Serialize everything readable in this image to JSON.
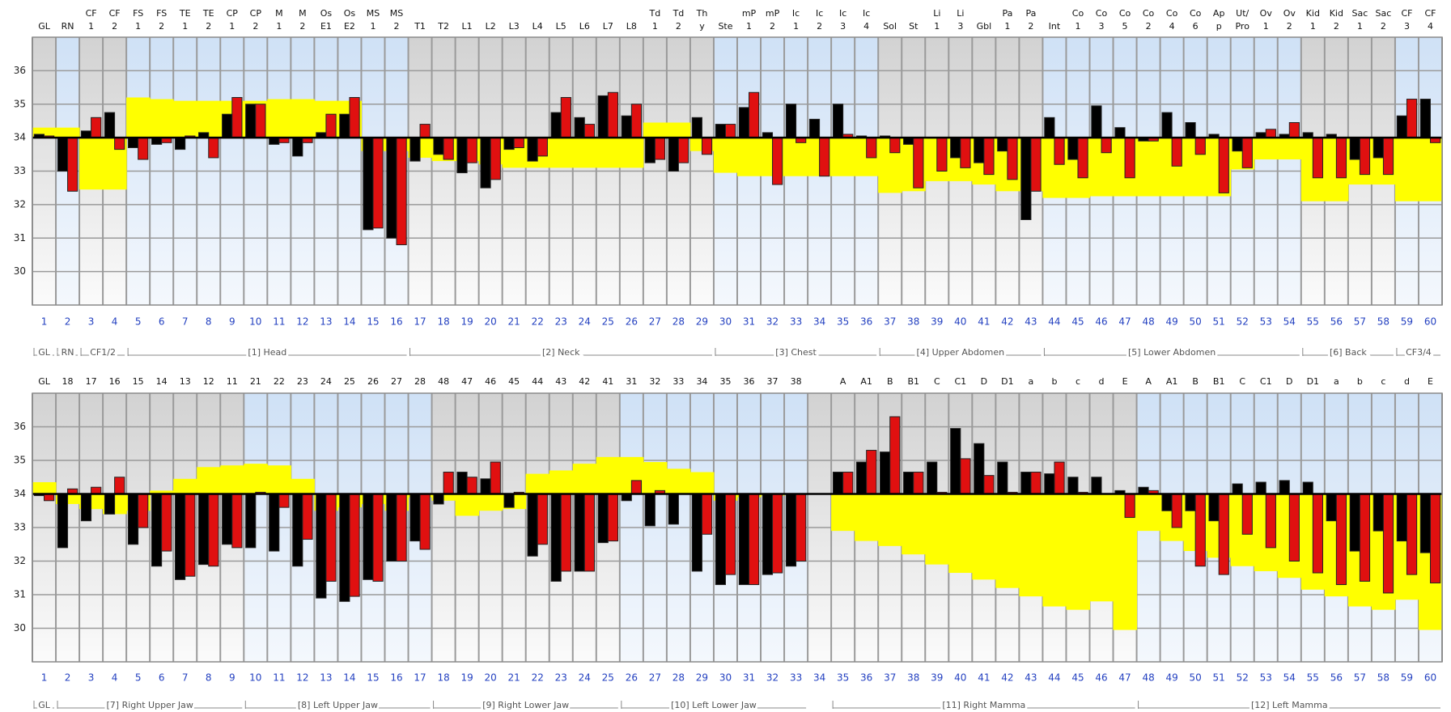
{
  "chart_data": [
    {
      "type": "bar",
      "labels": [
        [
          "GL"
        ],
        [
          "RN"
        ],
        [
          "CF",
          "1"
        ],
        [
          "CF",
          "2"
        ],
        [
          "FS",
          "1"
        ],
        [
          "FS",
          "2"
        ],
        [
          "TE",
          "1"
        ],
        [
          "TE",
          "2"
        ],
        [
          "CP",
          "1"
        ],
        [
          "CP",
          "2"
        ],
        [
          "M",
          "1"
        ],
        [
          "M",
          "2"
        ],
        [
          "Os",
          "E1"
        ],
        [
          "Os",
          "E2"
        ],
        [
          "MS",
          "1"
        ],
        [
          "MS",
          "2"
        ],
        [
          "T1"
        ],
        [
          "T2"
        ],
        [
          "L1"
        ],
        [
          "L2"
        ],
        [
          "L3"
        ],
        [
          "L4"
        ],
        [
          "L5"
        ],
        [
          "L6"
        ],
        [
          "L7"
        ],
        [
          "L8"
        ],
        [
          "Td",
          "1"
        ],
        [
          "Td",
          "2"
        ],
        [
          "Th",
          "y"
        ],
        [
          "Ste"
        ],
        [
          "mP",
          "1"
        ],
        [
          "mP",
          "2"
        ],
        [
          "Ic",
          "1"
        ],
        [
          "Ic",
          "2"
        ],
        [
          "Ic",
          "3"
        ],
        [
          "Ic",
          "4"
        ],
        [
          "Sol"
        ],
        [
          "St"
        ],
        [
          "Li",
          "1"
        ],
        [
          "Li",
          "3"
        ],
        [
          "Gbl"
        ],
        [
          "Pa",
          "1"
        ],
        [
          "Pa",
          "2"
        ],
        [
          "Int"
        ],
        [
          "Co",
          "1"
        ],
        [
          "Co",
          "3"
        ],
        [
          "Co",
          "5"
        ],
        [
          "Co",
          "2"
        ],
        [
          "Co",
          "4"
        ],
        [
          "Co",
          "6"
        ],
        [
          "Ap",
          "p"
        ],
        [
          "Ut/",
          "Pro"
        ],
        [
          "Ov",
          "1"
        ],
        [
          "Ov",
          "2"
        ],
        [
          "Kid",
          "1"
        ],
        [
          "Kid",
          "2"
        ],
        [
          "Sac",
          "1"
        ],
        [
          "Sac",
          "2"
        ],
        [
          "CF",
          "3"
        ],
        [
          "CF",
          "4"
        ]
      ],
      "categories": [
        1,
        2,
        3,
        4,
        5,
        6,
        7,
        8,
        9,
        10,
        11,
        12,
        13,
        14,
        15,
        16,
        17,
        18,
        19,
        20,
        21,
        22,
        23,
        24,
        25,
        26,
        27,
        28,
        29,
        30,
        31,
        32,
        33,
        34,
        35,
        36,
        37,
        38,
        39,
        40,
        41,
        42,
        43,
        44,
        45,
        46,
        47,
        48,
        49,
        50,
        51,
        52,
        53,
        54,
        55,
        56,
        57,
        58,
        59,
        60
      ],
      "group_labels": [
        "GL",
        "RN",
        "CF1/2",
        "[1] Head",
        "[2] Neck",
        "[3] Chest",
        "[4] Upper Abdomen",
        "[5] Lower Abdomen",
        "[6] Back",
        "CF3/4"
      ],
      "ylim": [
        29,
        37
      ],
      "yticks": [
        30,
        31,
        32,
        33,
        34,
        35,
        36
      ],
      "baseline": 34,
      "grid": true,
      "series": [
        {
          "color": "#000000",
          "values": [
            34.1,
            33.0,
            34.2,
            34.75,
            33.7,
            33.8,
            33.65,
            34.15,
            34.7,
            35.0,
            33.8,
            33.45,
            34.15,
            34.7,
            31.25,
            31.0,
            33.3,
            33.5,
            32.95,
            32.5,
            33.65,
            33.3,
            34.75,
            34.6,
            35.25,
            34.65,
            33.25,
            33.0,
            34.6,
            34.4,
            34.9,
            34.15,
            35.0,
            34.55,
            35.0,
            34.05,
            34.05,
            33.8,
            34.0,
            33.4,
            33.25,
            33.6,
            31.55,
            34.6,
            33.35,
            34.95,
            34.3,
            33.9,
            34.75,
            34.45,
            34.1,
            33.6,
            34.15,
            34.1,
            34.15,
            34.1,
            33.35,
            33.4,
            34.65,
            35.15
          ]
        },
        {
          "color": "#e01010",
          "values": [
            34.05,
            32.4,
            34.6,
            33.65,
            33.35,
            33.85,
            34.05,
            33.4,
            35.2,
            35.0,
            33.85,
            33.85,
            34.7,
            35.2,
            31.3,
            30.8,
            34.4,
            33.35,
            33.25,
            32.75,
            33.7,
            33.45,
            35.2,
            34.4,
            35.35,
            35.0,
            33.35,
            33.25,
            33.5,
            34.4,
            35.35,
            32.6,
            33.85,
            32.85,
            34.1,
            33.4,
            33.55,
            32.5,
            33.0,
            33.1,
            32.9,
            32.75,
            32.4,
            33.2,
            32.8,
            33.55,
            32.8,
            33.9,
            33.15,
            33.5,
            32.35,
            33.1,
            34.25,
            34.45,
            32.8,
            32.8,
            32.9,
            32.9,
            35.15,
            33.85
          ]
        }
      ],
      "band": {
        "color": "#ffff00",
        "values": [
          34.3,
          34.3,
          32.45,
          32.45,
          35.2,
          35.15,
          35.1,
          35.1,
          35.1,
          35.1,
          35.15,
          35.15,
          35.1,
          35.1,
          33.6,
          33.6,
          33.4,
          33.3,
          33.3,
          33.2,
          33.1,
          33.1,
          33.1,
          33.1,
          33.1,
          33.1,
          34.45,
          34.45,
          33.6,
          32.95,
          32.85,
          32.85,
          32.85,
          32.85,
          32.85,
          32.85,
          32.35,
          32.4,
          32.7,
          32.7,
          32.6,
          32.4,
          32.4,
          32.2,
          32.2,
          32.25,
          32.25,
          32.25,
          32.25,
          32.25,
          32.25,
          33.05,
          33.35,
          33.35,
          32.1,
          32.1,
          32.6,
          32.6,
          32.1,
          32.1
        ]
      }
    },
    {
      "type": "bar",
      "labels": [
        "GL",
        "18",
        "17",
        "16",
        "15",
        "14",
        "13",
        "12",
        "11",
        "21",
        "22",
        "23",
        "24",
        "25",
        "26",
        "27",
        "28",
        "48",
        "47",
        "46",
        "45",
        "44",
        "43",
        "42",
        "41",
        "31",
        "32",
        "33",
        "34",
        "35",
        "36",
        "37",
        "38",
        null,
        "A",
        "A1",
        "B",
        "B1",
        "C",
        "C1",
        "D",
        "D1",
        "a",
        "b",
        "c",
        "d",
        "E",
        "A",
        "A1",
        "B",
        "B1",
        "C",
        "C1",
        "D",
        "D1",
        "a",
        "b",
        "c",
        "d",
        "E"
      ],
      "categories": [
        1,
        2,
        3,
        4,
        5,
        6,
        7,
        8,
        9,
        10,
        11,
        12,
        13,
        14,
        15,
        16,
        17,
        18,
        19,
        20,
        21,
        22,
        23,
        24,
        25,
        26,
        27,
        28,
        29,
        30,
        31,
        32,
        33,
        34,
        35,
        36,
        37,
        38,
        39,
        40,
        41,
        42,
        43,
        44,
        45,
        46,
        47,
        48,
        49,
        50,
        51,
        52,
        53,
        54,
        55,
        56,
        57,
        58,
        59,
        60
      ],
      "group_labels": [
        "GL",
        "[7] Right Upper Jaw",
        "[8] Left Upper Jaw",
        "[9] Right Lower Jaw",
        "[10] Left Lower Jaw",
        "[11] Right Mamma",
        "[12] Left Mamma"
      ],
      "ylim": [
        29,
        37
      ],
      "yticks": [
        30,
        31,
        32,
        33,
        34,
        35,
        36
      ],
      "baseline": 34,
      "grid": true,
      "series": [
        {
          "color": "#000000",
          "values": [
            33.95,
            32.4,
            33.2,
            33.4,
            32.5,
            31.85,
            31.45,
            31.9,
            32.5,
            32.4,
            32.3,
            31.85,
            30.9,
            30.8,
            31.45,
            32.0,
            32.6,
            33.7,
            34.65,
            34.45,
            33.6,
            32.15,
            31.4,
            31.7,
            32.55,
            33.8,
            33.05,
            33.1,
            31.7,
            31.3,
            31.3,
            31.6,
            31.85,
            null,
            34.65,
            34.95,
            35.25,
            34.65,
            34.95,
            35.95,
            35.5,
            34.95,
            34.65,
            34.6,
            34.5,
            34.5,
            34.1,
            34.2,
            33.5,
            33.5,
            33.2,
            34.3,
            34.35,
            34.4,
            34.35,
            33.2,
            32.3,
            32.9,
            32.6,
            32.25
          ]
        },
        {
          "color": "#e01010",
          "values": [
            33.8,
            34.15,
            34.2,
            34.5,
            33.0,
            32.3,
            31.55,
            31.85,
            32.4,
            34.05,
            33.6,
            32.65,
            31.4,
            30.95,
            31.4,
            32.0,
            32.35,
            34.65,
            34.5,
            34.95,
            34.05,
            32.5,
            31.7,
            31.7,
            32.6,
            34.4,
            34.1,
            34.0,
            32.8,
            31.6,
            31.3,
            31.65,
            32.0,
            null,
            34.65,
            35.3,
            36.3,
            34.65,
            34.05,
            35.05,
            34.55,
            34.05,
            34.65,
            34.95,
            34.05,
            34.0,
            33.3,
            34.1,
            33.0,
            31.85,
            31.6,
            32.8,
            32.4,
            32.0,
            31.65,
            31.3,
            31.4,
            31.05,
            31.6,
            31.35
          ]
        }
      ],
      "band": {
        "color": "#ffff00",
        "values": [
          34.35,
          33.7,
          33.55,
          33.4,
          33.5,
          34.1,
          34.45,
          34.8,
          34.85,
          34.9,
          34.85,
          34.45,
          33.5,
          33.6,
          33.7,
          33.5,
          33.9,
          33.8,
          33.35,
          33.5,
          33.55,
          34.6,
          34.7,
          34.9,
          35.1,
          35.1,
          34.95,
          34.75,
          34.65,
          33.8,
          33.9,
          33.95,
          34.0,
          null,
          32.9,
          32.6,
          32.45,
          32.2,
          31.9,
          31.65,
          31.45,
          31.2,
          30.95,
          30.65,
          30.55,
          30.8,
          29.95,
          32.9,
          32.6,
          32.3,
          32.1,
          31.85,
          31.7,
          31.5,
          31.15,
          30.95,
          30.65,
          30.55,
          30.85,
          29.95
        ]
      }
    }
  ]
}
